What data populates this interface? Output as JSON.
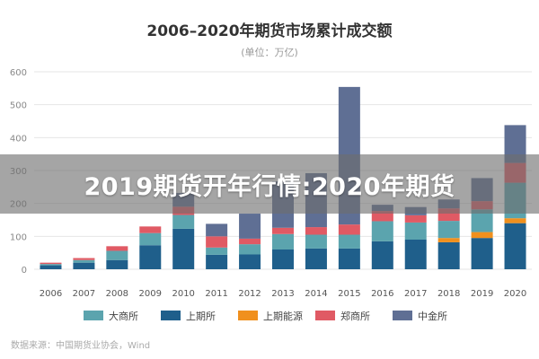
{
  "banner": {
    "text": "2019期货开年行情:2020年期货"
  },
  "chart_data": {
    "type": "bar",
    "stacked": true,
    "title": "2006–2020年期货市场累计成交额",
    "subtitle": "(单位：万亿)",
    "source": "数据来源：中国期货业协会，Wind",
    "categories": [
      "2006",
      "2007",
      "2008",
      "2009",
      "2010",
      "2011",
      "2012",
      "2013",
      "2014",
      "2015",
      "2016",
      "2017",
      "2018",
      "2019",
      "2020"
    ],
    "y_ticks": [
      0,
      100,
      200,
      300,
      400,
      500,
      600
    ],
    "ylim": [
      0,
      600
    ],
    "grid": true,
    "legend_position": "bottom",
    "series": [
      {
        "name": "上期所",
        "color": "#1f5f8b",
        "values": [
          12,
          20,
          28,
          73,
          123,
          44,
          45,
          60,
          63,
          63,
          85,
          90,
          82,
          95,
          140
        ]
      },
      {
        "name": "上期能源",
        "color": "#f0901e",
        "values": [
          0,
          0,
          0,
          0,
          0,
          0,
          0,
          0,
          0,
          0,
          0,
          0,
          13,
          18,
          15
        ]
      },
      {
        "name": "大商所",
        "color": "#5ba4ae",
        "values": [
          4,
          8,
          28,
          37,
          42,
          22,
          31,
          47,
          42,
          42,
          61,
          52,
          52,
          69,
          108
        ]
      },
      {
        "name": "郑商所",
        "color": "#e05a64",
        "values": [
          4,
          6,
          14,
          20,
          25,
          34,
          17,
          19,
          23,
          31,
          31,
          22,
          38,
          25,
          60
        ]
      },
      {
        "name": "中金所",
        "color": "#5f6f94",
        "values": [
          0,
          0,
          0,
          0,
          42,
          38,
          76,
          141,
          164,
          418,
          19,
          25,
          27,
          70,
          115
        ]
      }
    ],
    "legend_order": [
      "大商所",
      "上期所",
      "上期能源",
      "郑商所",
      "中金所"
    ]
  }
}
